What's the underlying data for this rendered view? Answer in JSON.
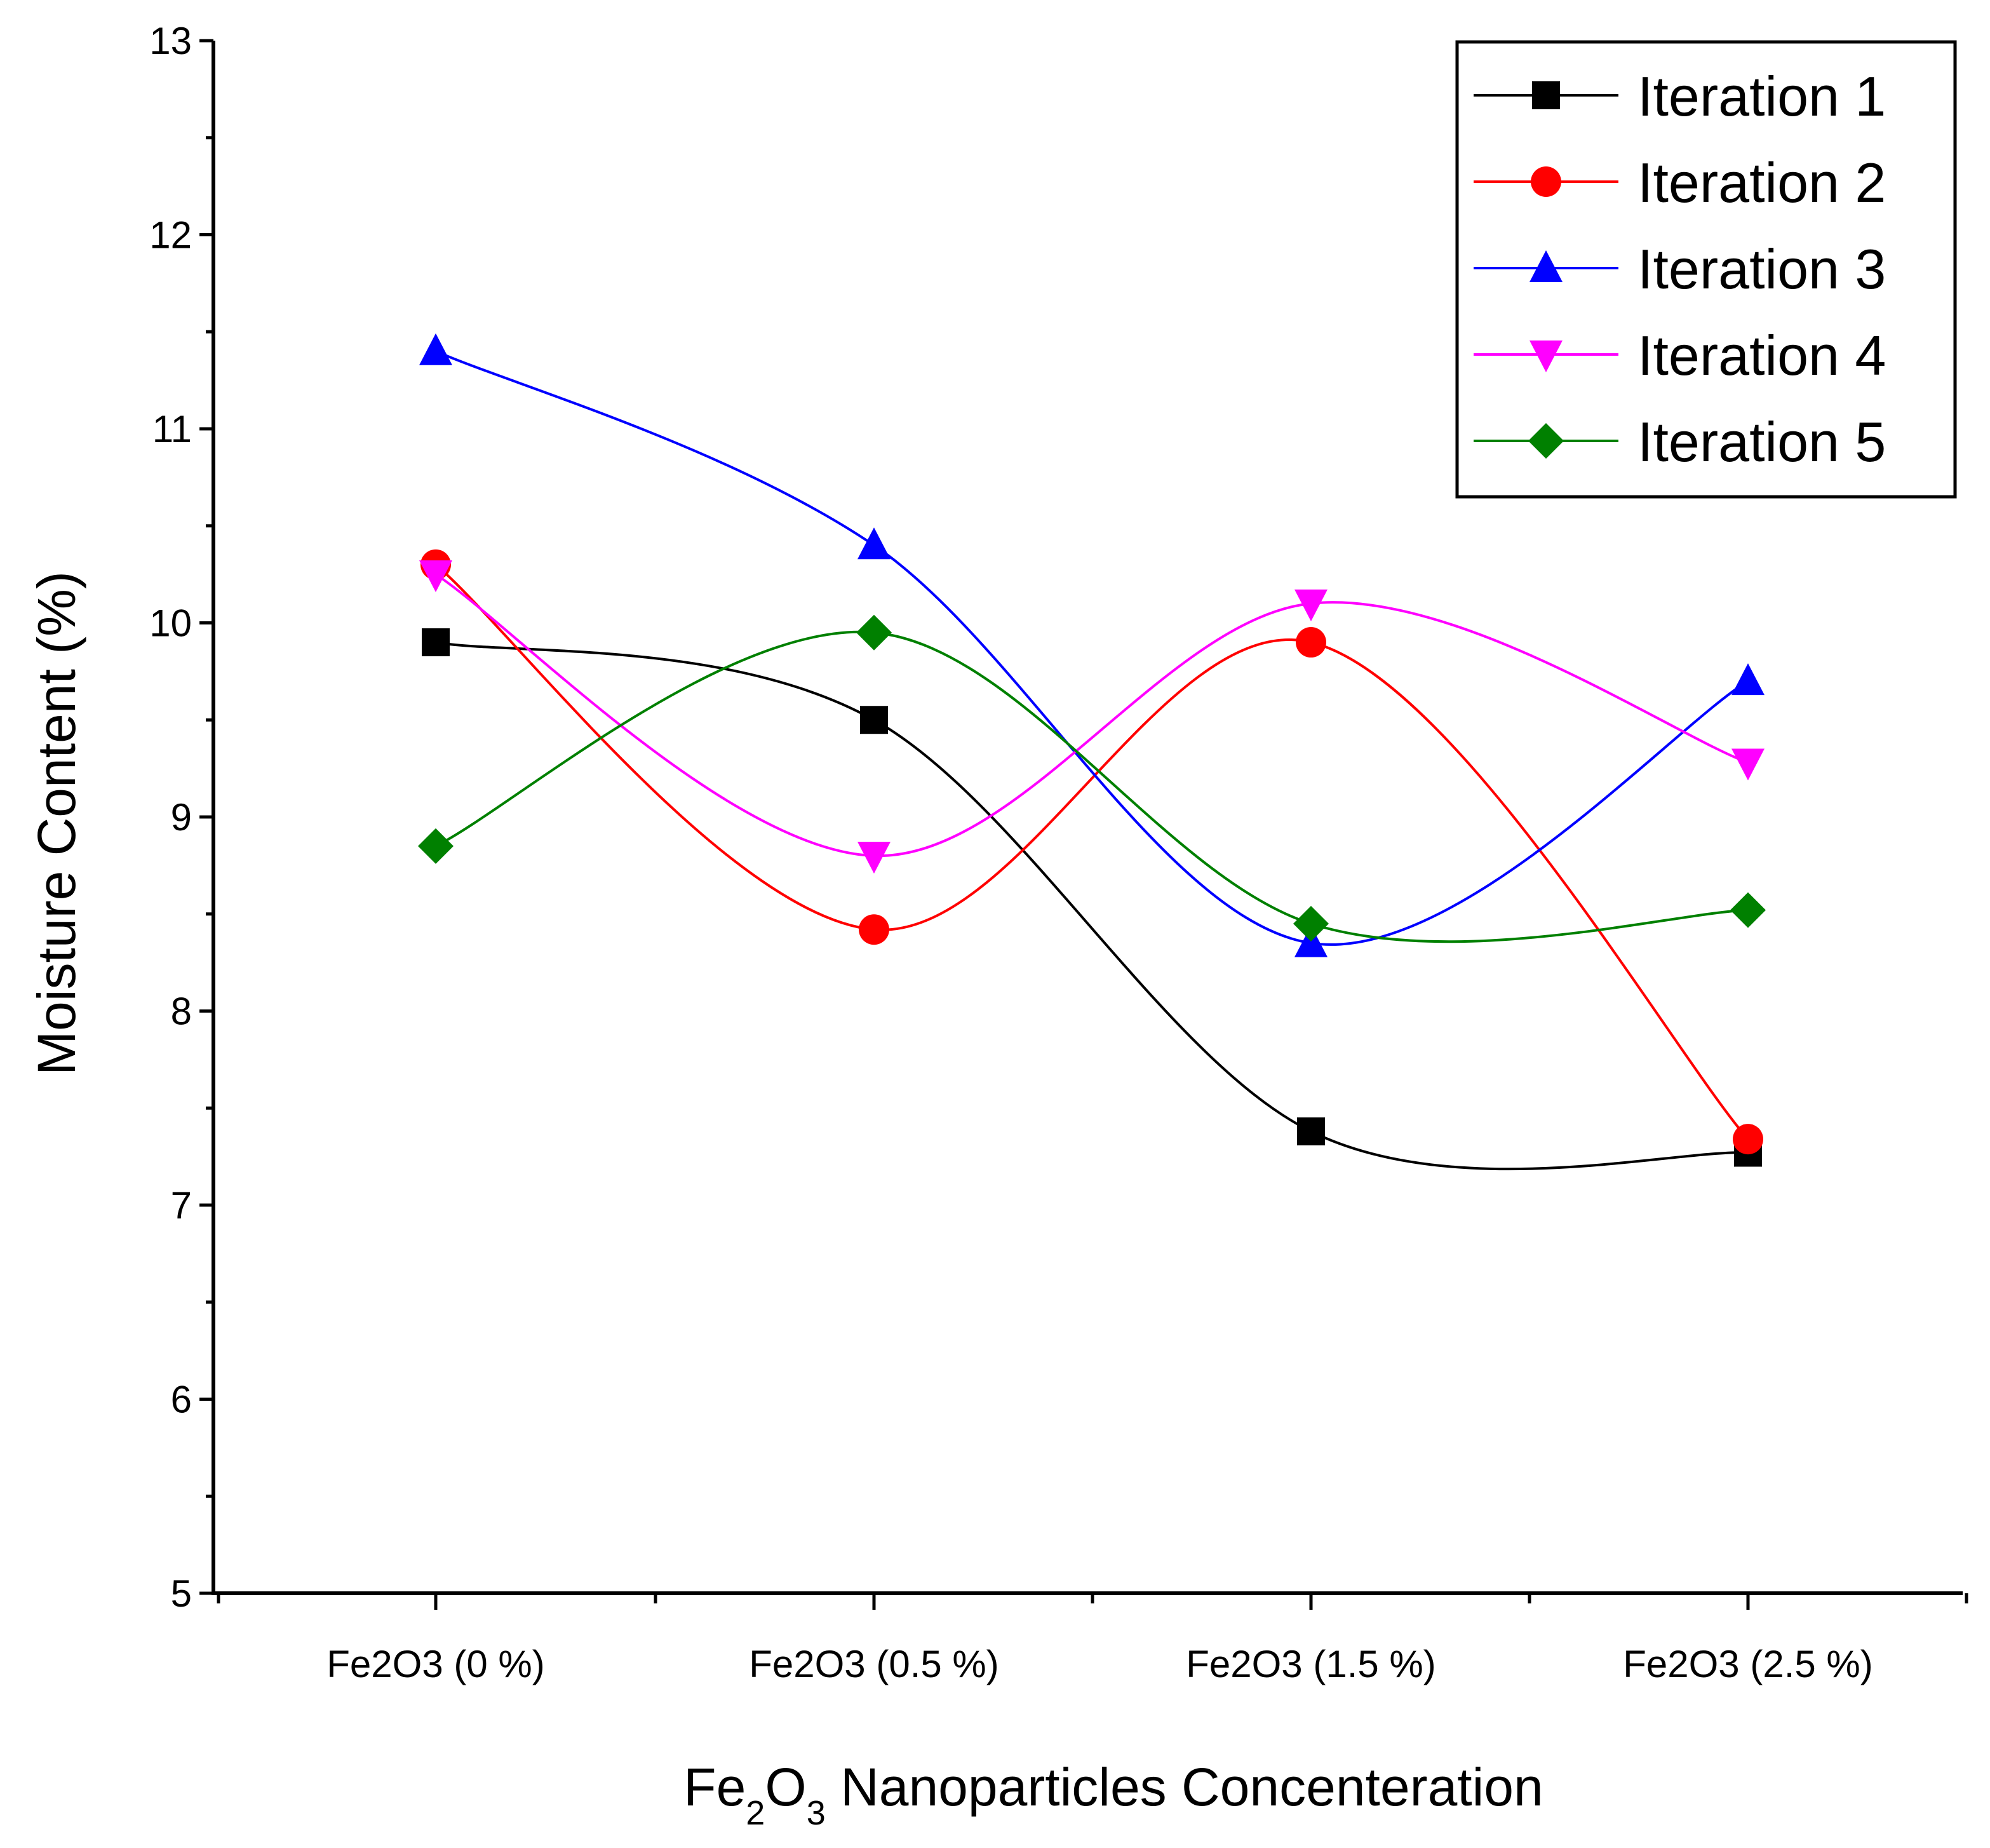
{
  "chart_data": {
    "type": "line",
    "title": "",
    "xlabel": {
      "main": "Fe",
      "sub1": "2",
      "mid": "O",
      "sub2": "3",
      "rest": " Nanoparticles Concenteration"
    },
    "ylabel": "Moisture Content (%)",
    "categories": [
      "Fe2O3 (0 %)",
      "Fe2O3 (0.5 %)",
      "Fe2O3 (1.5 %)",
      "Fe2O3 (2.5 %)"
    ],
    "ylim": [
      5,
      13
    ],
    "yticks": [
      "5",
      "6",
      "7",
      "8",
      "9",
      "10",
      "11",
      "12",
      "13"
    ],
    "grid": false,
    "legend_position": "top-right",
    "smoothed": true,
    "series": [
      {
        "name": "Iteration 1",
        "color": "#000000",
        "marker": "square",
        "values": [
          9.9,
          9.5,
          7.38,
          7.27
        ]
      },
      {
        "name": "Iteration 2",
        "color": "#ff0000",
        "marker": "circle",
        "values": [
          10.3,
          8.42,
          9.9,
          7.34
        ]
      },
      {
        "name": "Iteration 3",
        "color": "#0000ff",
        "marker": "triangle-up",
        "values": [
          11.4,
          10.4,
          8.35,
          9.7
        ]
      },
      {
        "name": "Iteration 4",
        "color": "#ff00ff",
        "marker": "triangle-down",
        "values": [
          10.25,
          8.8,
          10.1,
          9.28
        ]
      },
      {
        "name": "Iteration 5",
        "color": "#008000",
        "marker": "diamond",
        "values": [
          8.85,
          9.95,
          8.45,
          8.52
        ]
      }
    ]
  }
}
